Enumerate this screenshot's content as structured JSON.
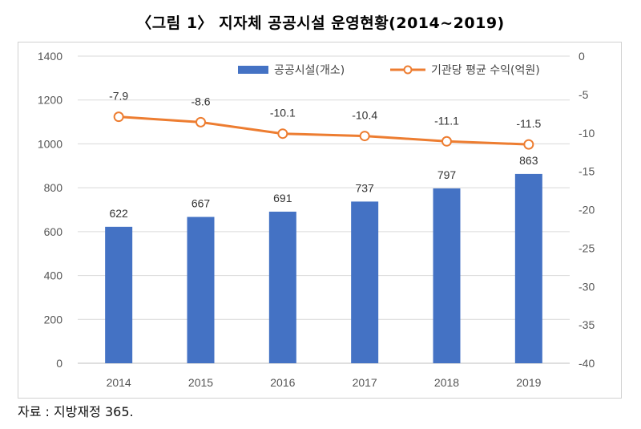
{
  "title": "〈그림 1〉 지자체 공공시설 운영현황(2014~2019)",
  "source": "자료 : 지방재정 365.",
  "chart_data": {
    "type": "bar+line",
    "categories": [
      "2014",
      "2015",
      "2016",
      "2017",
      "2018",
      "2019"
    ],
    "series": [
      {
        "name": "공공시설(개소)",
        "type": "bar",
        "axis": "left",
        "color": "#4472c4",
        "values": [
          622,
          667,
          691,
          737,
          797,
          863
        ],
        "labels": [
          "622",
          "667",
          "691",
          "737",
          "797",
          "863"
        ]
      },
      {
        "name": "기관당 평균 수익(억원)",
        "type": "line",
        "axis": "right",
        "color": "#ed7d31",
        "values": [
          -7.9,
          -8.6,
          -10.1,
          -10.4,
          -11.1,
          -11.5
        ],
        "labels": [
          "-7.9",
          "-8.6",
          "-10.1",
          "-10.4",
          "-11.1",
          "-11.5"
        ]
      }
    ],
    "y_left": {
      "ylim": [
        0,
        1400
      ],
      "ticks": [
        "0",
        "200",
        "400",
        "600",
        "800",
        "1000",
        "1200",
        "1400"
      ]
    },
    "y_right": {
      "ylim": [
        -40,
        0
      ],
      "ticks": [
        "0",
        "-5",
        "-10",
        "-15",
        "-20",
        "-25",
        "-30",
        "-35",
        "-40"
      ]
    },
    "grid": true,
    "legend_position": "top-right"
  }
}
